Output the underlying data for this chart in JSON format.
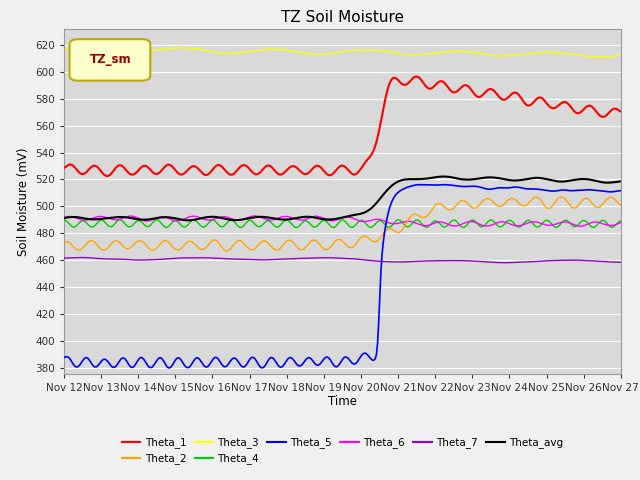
{
  "title": "TZ Soil Moisture",
  "ylabel": "Soil Moisture (mV)",
  "xlabel": "Time",
  "legend_label": "TZ_sm",
  "x_tick_labels": [
    "Nov 12",
    "Nov 13",
    "Nov 14",
    "Nov 15",
    "Nov 16",
    "Nov 17",
    "Nov 18",
    "Nov 19",
    "Nov 20",
    "Nov 21",
    "Nov 22",
    "Nov 23",
    "Nov 24",
    "Nov 25",
    "Nov 26",
    "Nov 27"
  ],
  "ylim": [
    375,
    632
  ],
  "yticks": [
    380,
    400,
    420,
    440,
    460,
    480,
    500,
    520,
    540,
    560,
    580,
    600,
    620
  ],
  "colors": {
    "Theta_1": "#ff0000",
    "Theta_2": "#ffa500",
    "Theta_3": "#ffff00",
    "Theta_4": "#00cc00",
    "Theta_5": "#0000ff",
    "Theta_6": "#ff00ff",
    "Theta_7": "#9900cc",
    "Theta_avg": "#000000"
  },
  "bg_color": "#d9d9d9",
  "grid_color": "#ffffff",
  "num_points": 500,
  "trans_day": 8.5
}
